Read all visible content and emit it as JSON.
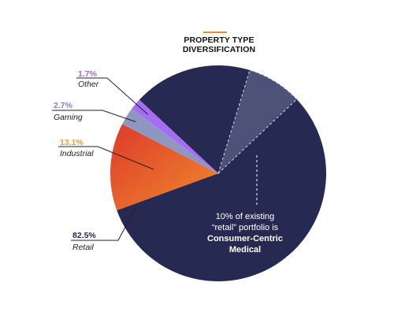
{
  "chart_data": {
    "type": "pie",
    "title_lines": [
      "PROPERTY TYPE",
      "DIVERSIFICATION"
    ],
    "slices": [
      {
        "label": "Retail",
        "value": 82.5,
        "value_label": "82.5%",
        "color": "#262a52",
        "label_color": "#262a52"
      },
      {
        "label": "Industrial",
        "value": 13.1,
        "value_label": "13.1%",
        "color": "#ee7a2a",
        "color_alt": "#dd3a2c",
        "label_color": "#f0a030"
      },
      {
        "label": "Gaming",
        "value": 2.7,
        "value_label": "2.7%",
        "color": "#8f97c0",
        "label_color": "#7b86b8"
      },
      {
        "label": "Other",
        "value": 1.7,
        "value_label": "1.7%",
        "color": "#a46df2",
        "label_color": "#9b6cf0"
      }
    ],
    "highlight": {
      "of": "Retail",
      "value": 10,
      "color": "#4e5279",
      "callout_lines": [
        "10% of existing",
        "“retail” portfolio is"
      ],
      "callout_bold_lines": [
        "Consumer-Centric",
        "Medical"
      ]
    }
  }
}
